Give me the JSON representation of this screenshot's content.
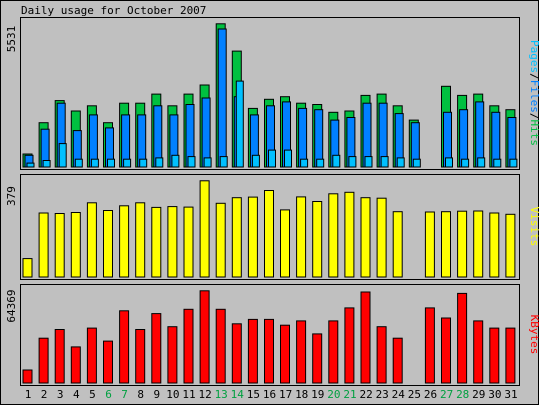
{
  "chart_data": {
    "title": "Daily usage for October 2007",
    "type": "bar",
    "categories": [
      "1",
      "2",
      "3",
      "4",
      "5",
      "6",
      "7",
      "8",
      "9",
      "10",
      "11",
      "12",
      "13",
      "14",
      "15",
      "16",
      "17",
      "18",
      "19",
      "20",
      "21",
      "22",
      "23",
      "24",
      "25",
      "26",
      "27",
      "28",
      "29",
      "30",
      "31"
    ],
    "weekend_days": [
      "6",
      "7",
      "13",
      "14",
      "20",
      "21",
      "27",
      "28"
    ],
    "panels": [
      {
        "id": "pages_files_hits",
        "max_label": "5531",
        "ymax": 5531,
        "right_label_parts": [
          {
            "text": "Pages",
            "color": "#00c0ff"
          },
          {
            "text": "/",
            "color": "#000000"
          },
          {
            "text": "Files",
            "color": "#0080ff"
          },
          {
            "text": "/",
            "color": "#000000"
          },
          {
            "text": "Hits",
            "color": "#00c040"
          }
        ],
        "series": [
          {
            "name": "Hits",
            "color": "#00c040",
            "values": [
              500,
              1700,
              2550,
              2150,
              2350,
              1700,
              2450,
              2450,
              2800,
              2350,
              2800,
              3150,
              5500,
              4450,
              2250,
              2600,
              2700,
              2450,
              2400,
              2100,
              2150,
              2750,
              2800,
              2350,
              1800,
              0,
              3100,
              2750,
              2800,
              2350,
              2200
            ]
          },
          {
            "name": "Files",
            "color": "#0080ff",
            "values": [
              450,
              1450,
              2450,
              1400,
              2000,
              1500,
              2000,
              2000,
              2350,
              2000,
              2400,
              2650,
              5300,
              2700,
              2000,
              2350,
              2500,
              2250,
              2200,
              1800,
              1900,
              2450,
              2450,
              2050,
              1700,
              0,
              2100,
              2200,
              2500,
              2100,
              1900
            ]
          },
          {
            "name": "Pages",
            "color": "#00c0ff",
            "values": [
              150,
              250,
              900,
              300,
              300,
              300,
              300,
              300,
              350,
              450,
              400,
              350,
              400,
              3300,
              450,
              650,
              650,
              300,
              300,
              450,
              400,
              400,
              400,
              350,
              300,
              0,
              350,
              300,
              350,
              300,
              300
            ]
          }
        ]
      },
      {
        "id": "visits",
        "max_label": "379",
        "ymax": 379,
        "right_label_parts": [
          {
            "text": "Visits",
            "color": "#ffff00"
          }
        ],
        "series": [
          {
            "name": "Visits",
            "color": "#ffff00",
            "values": [
              72,
              250,
              248,
              252,
              290,
              260,
              278,
              290,
              272,
              275,
              273,
              376,
              288,
              310,
              312,
              338,
              262,
              313,
              295,
              325,
              331,
              310,
              308,
              255,
              0,
              254,
              255,
              257,
              258,
              250,
              245
            ]
          }
        ]
      },
      {
        "id": "kbytes",
        "max_label": "64369",
        "ymax": 64369,
        "right_label_parts": [
          {
            "text": "KBytes",
            "color": "#ff0000"
          }
        ],
        "series": [
          {
            "name": "KBytes",
            "color": "#ff0000",
            "values": [
              9000,
              31000,
              37000,
              25000,
              38000,
              29000,
              50000,
              37000,
              48000,
              39000,
              51000,
              63800,
              51000,
              41000,
              44000,
              44000,
              40000,
              43000,
              34000,
              43000,
              52000,
              63000,
              39000,
              31000,
              0,
              52000,
              45000,
              62000,
              43000,
              38000,
              38000
            ]
          }
        ]
      }
    ]
  }
}
